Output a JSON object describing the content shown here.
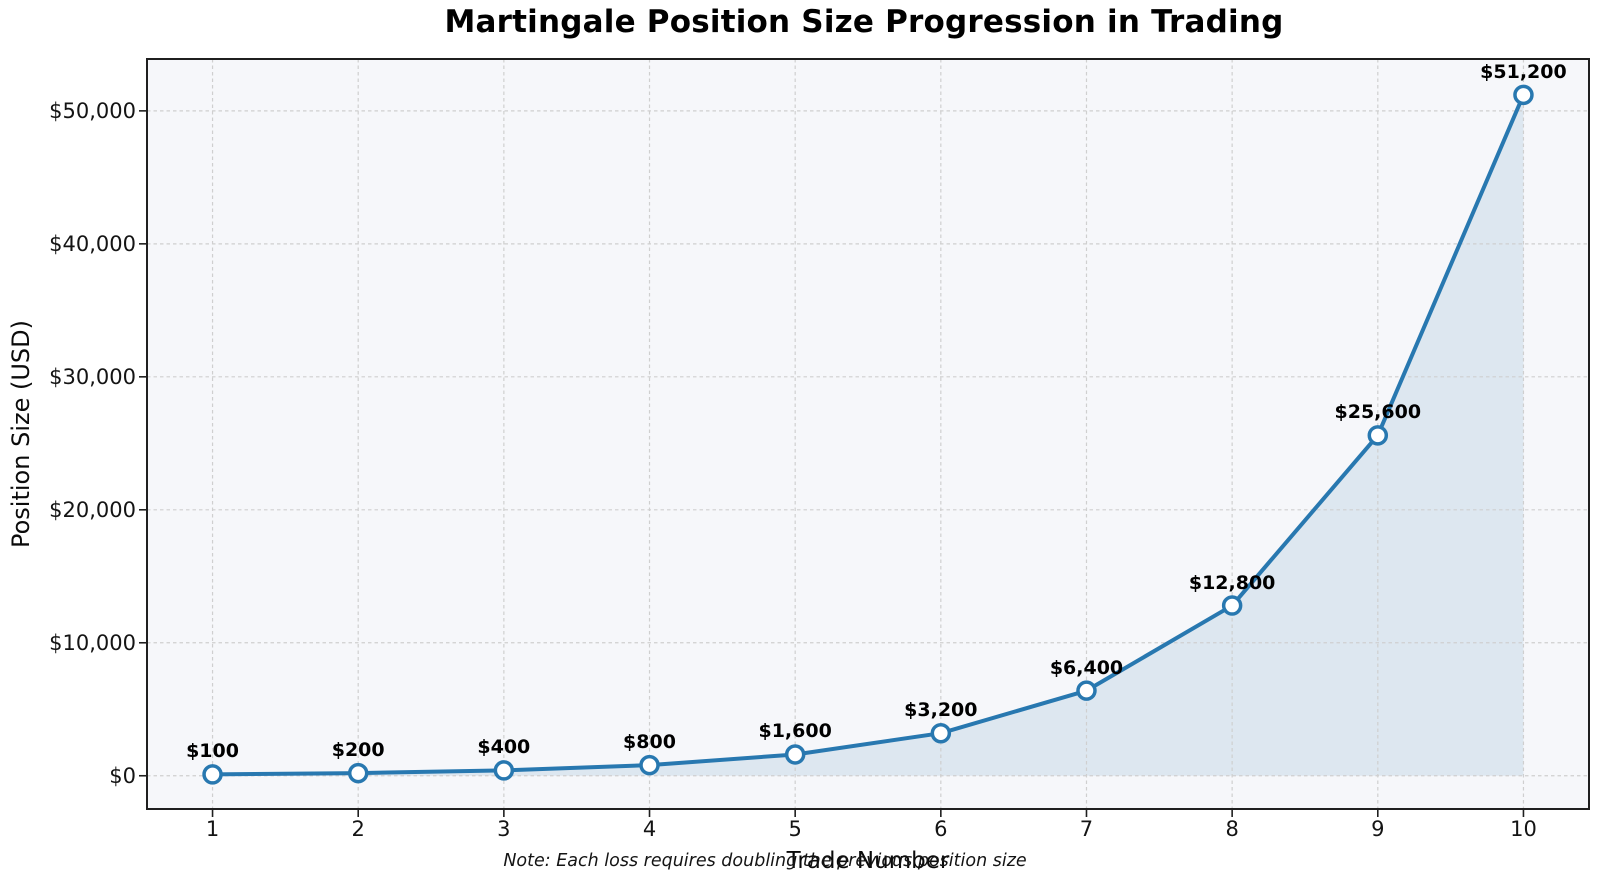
{
  "chart_data": {
    "type": "line",
    "title": "Martingale Position Size Progression in Trading",
    "xlabel": "Trade Number",
    "ylabel": "Position Size (USD)",
    "note": "Note: Each loss requires doubling the previous position size",
    "x": [
      1,
      2,
      3,
      4,
      5,
      6,
      7,
      8,
      9,
      10
    ],
    "values": [
      100,
      200,
      400,
      800,
      1600,
      3200,
      6400,
      12800,
      25600,
      51200
    ],
    "point_labels": [
      "$100",
      "$200",
      "$400",
      "$800",
      "$1,600",
      "$3,200",
      "$6,400",
      "$12,800",
      "$25,600",
      "$51,200"
    ],
    "x_tick_labels": [
      "1",
      "2",
      "3",
      "4",
      "5",
      "6",
      "7",
      "8",
      "9",
      "10"
    ],
    "y_ticks": [
      {
        "value": 0,
        "label": "$0"
      },
      {
        "value": 10000,
        "label": "$10,000"
      },
      {
        "value": 20000,
        "label": "$20,000"
      },
      {
        "value": 30000,
        "label": "$30,000"
      },
      {
        "value": 40000,
        "label": "$40,000"
      },
      {
        "value": 50000,
        "label": "$50,000"
      }
    ],
    "xlim": [
      0.55,
      10.45
    ],
    "ylim": [
      -2500,
      53900
    ],
    "grid": true,
    "legend": null,
    "area_fill_baseline": 0,
    "marker": "open-circle",
    "colors": {
      "line": "#2878b0",
      "marker_fill": "#ffffff",
      "area_fill": "#dde7f0",
      "plot_bg": "#f6f7fa",
      "grid": "#cfcfcf",
      "spine": "#1f1f1f",
      "text": "#000000"
    }
  }
}
